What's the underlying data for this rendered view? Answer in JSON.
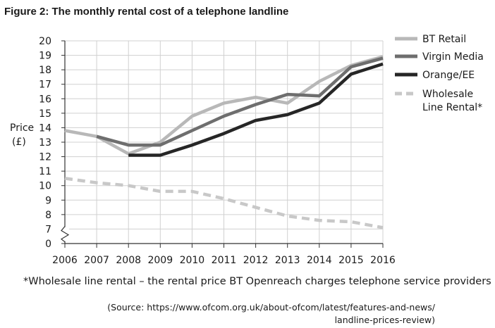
{
  "figure": {
    "title": "Figure 2: The monthly rental cost of a telephone landline",
    "footnote": "*Wholesale line rental – the rental price BT Openreach charges telephone service providers",
    "source_line1": "(Source: https://www.ofcom.org.uk/about-ofcom/latest/features-and-news/",
    "source_line2": "landline-prices-review)"
  },
  "chart_data": {
    "type": "line",
    "title": "Figure 2: The monthly rental cost of a telephone landline",
    "ylabel_line1": "Price",
    "ylabel_line2": "(£)",
    "xlabel": "",
    "x": [
      2006,
      2007,
      2008,
      2009,
      2010,
      2011,
      2012,
      2013,
      2014,
      2015,
      2016
    ],
    "xlim": [
      2006,
      2016
    ],
    "ylim": [
      0,
      20
    ],
    "yticks": [
      0,
      7,
      8,
      9,
      10,
      11,
      12,
      13,
      14,
      15,
      16,
      17,
      18,
      19,
      20
    ],
    "y_axis_break": true,
    "grid": true,
    "legend_position": "right",
    "series": [
      {
        "name": "BT Retail",
        "color": "#b8b8b8",
        "dashed": false,
        "values": [
          13.8,
          13.4,
          12.2,
          13.0,
          14.8,
          15.7,
          16.1,
          15.7,
          17.2,
          18.3,
          18.9
        ]
      },
      {
        "name": "Virgin Media",
        "color": "#6e6e6e",
        "dashed": false,
        "values": [
          null,
          13.4,
          12.8,
          12.8,
          13.8,
          14.8,
          15.6,
          16.3,
          16.2,
          18.2,
          18.8
        ]
      },
      {
        "name": "Orange/EE",
        "color": "#262626",
        "dashed": false,
        "values": [
          null,
          null,
          12.1,
          12.1,
          12.8,
          13.6,
          14.5,
          14.9,
          15.7,
          17.7,
          18.4
        ]
      },
      {
        "name": "Wholesale",
        "name_line2": "Line Rental*",
        "color": "#c8c8c8",
        "dashed": true,
        "values": [
          10.5,
          10.2,
          10.0,
          9.6,
          9.6,
          9.1,
          8.5,
          7.9,
          7.6,
          7.5,
          7.1
        ]
      }
    ]
  }
}
